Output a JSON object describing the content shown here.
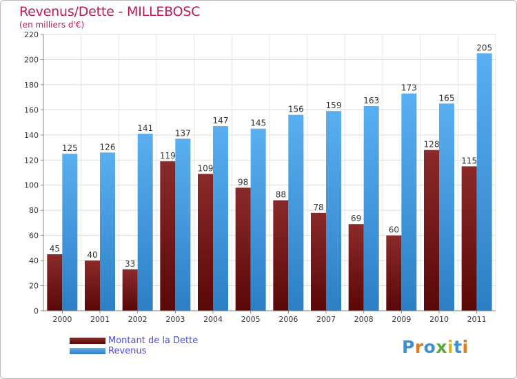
{
  "title": "Revenus/Dette - MILLEBOSC",
  "subtitle": "(en milliers d'€)",
  "logo": "Proxiti",
  "chart_data": {
    "type": "bar",
    "categories": [
      "2000",
      "2001",
      "2002",
      "2003",
      "2004",
      "2005",
      "2006",
      "2007",
      "2008",
      "2009",
      "2010",
      "2011"
    ],
    "series": [
      {
        "name": "Montant de la Dette",
        "values": [
          45,
          40,
          33,
          119,
          109,
          98,
          88,
          78,
          69,
          60,
          128,
          115
        ],
        "color": "#7a1c1c"
      },
      {
        "name": "Revenus",
        "values": [
          125,
          126,
          141,
          137,
          147,
          145,
          156,
          159,
          163,
          173,
          165,
          205
        ],
        "color": "#4ea6e8"
      }
    ],
    "ylim": [
      0,
      220
    ],
    "yticks": [
      0,
      20,
      40,
      60,
      80,
      100,
      120,
      140,
      160,
      180,
      200,
      220
    ],
    "grid": true,
    "legend_position": "bottom-left"
  }
}
